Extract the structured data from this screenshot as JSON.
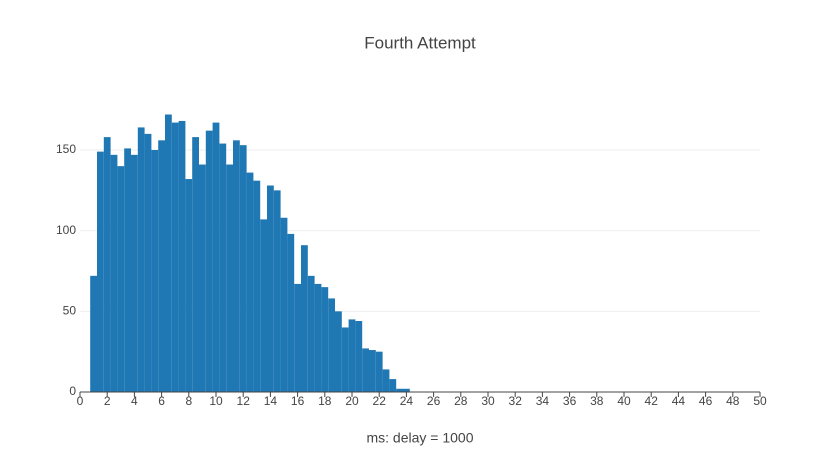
{
  "chart_data": {
    "type": "histogram",
    "title": "Fourth Attempt",
    "x_label": "ms: delay = 1000",
    "bins": [
      0.75,
      1.25,
      1.75,
      2.25,
      2.75,
      3.25,
      3.75,
      4.25,
      4.75,
      5.25,
      5.75,
      6.25,
      6.75,
      7.25,
      7.75,
      8.25,
      8.75,
      9.25,
      9.75,
      10.25,
      10.75,
      11.25,
      11.75,
      12.25,
      12.75,
      13.25,
      13.75,
      14.25,
      14.75,
      15.25,
      15.75,
      16.25,
      16.75,
      17.25,
      17.75,
      18.25,
      18.75,
      19.25,
      19.75,
      20.25,
      20.75,
      21.25,
      21.75,
      22.25,
      22.75,
      23.25,
      23.75,
      24.25
    ],
    "values": [
      72,
      149,
      158,
      147,
      140,
      151,
      147,
      164,
      160,
      150,
      156,
      172,
      167,
      168,
      132,
      158,
      141,
      162,
      167,
      154,
      141,
      156,
      153,
      136,
      131,
      107,
      128,
      125,
      108,
      98,
      67,
      91,
      72,
      67,
      65,
      58,
      50,
      40,
      45,
      44,
      27,
      26,
      25,
      14,
      8,
      2,
      2
    ],
    "color": "#1f77b4",
    "xlim": [
      0,
      50
    ],
    "xticks": [
      0,
      2,
      4,
      6,
      8,
      10,
      12,
      14,
      16,
      18,
      20,
      22,
      24,
      26,
      28,
      30,
      32,
      34,
      36,
      38,
      40,
      42,
      44,
      46,
      48,
      50
    ],
    "ylim": [
      0,
      181
    ],
    "yticks": [
      0,
      50,
      100,
      150
    ],
    "grid": true
  }
}
